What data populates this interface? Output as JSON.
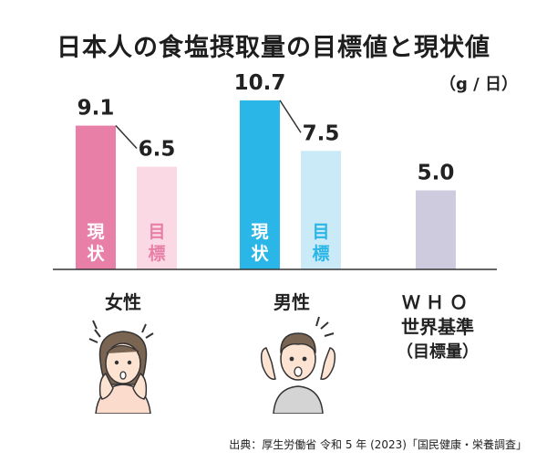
{
  "chart_data": {
    "type": "bar",
    "title": "日本人の食塩摂取量の目標値と現状値",
    "unit": "（g / 日）",
    "ylim": [
      0,
      12
    ],
    "bars": [
      {
        "group": "女性",
        "kind": "現状",
        "value": 9.1,
        "label": "9.1",
        "inner_text": [
          "現",
          "状"
        ],
        "color": "#e77fa7",
        "text_color": "#ffffff"
      },
      {
        "group": "女性",
        "kind": "目標",
        "value": 6.5,
        "label": "6.5",
        "inner_text": [
          "目",
          "標"
        ],
        "color": "#fbd9e4",
        "text_color": "#e77fa7"
      },
      {
        "group": "男性",
        "kind": "現状",
        "value": 10.7,
        "label": "10.7",
        "inner_text": [
          "現",
          "状"
        ],
        "color": "#2ab6e6",
        "text_color": "#ffffff"
      },
      {
        "group": "男性",
        "kind": "目標",
        "value": 7.5,
        "label": "7.5",
        "inner_text": [
          "目",
          "標"
        ],
        "color": "#cbeaf7",
        "text_color": "#2ab6e6"
      },
      {
        "group": "WHO",
        "kind": "基準",
        "value": 5.0,
        "label": "5.0",
        "inner_text": [],
        "color": "#cdcbdd",
        "text_color": "#ffffff"
      }
    ],
    "categories": [
      "女性",
      "男性",
      "ＷＨＯ 世界基準（目標量）"
    ]
  },
  "labels": {
    "female": "女性",
    "male": "男性",
    "who_line1": "ＷＨＯ",
    "who_line2": "世界基準",
    "who_line3": "（目標量）"
  },
  "source": "出典：厚生労働省 令和 5 年 (2023)「国民健康・栄養調査」",
  "colors": {
    "female_current": "#e77fa7",
    "female_target": "#fbd9e4",
    "male_current": "#2ab6e6",
    "male_target": "#cbeaf7",
    "who": "#cdcbdd",
    "skin": "#fde3d2",
    "hair": "#7a6452",
    "shirt_female": "#fbdccc",
    "shirt_male": "#d4d4d4"
  }
}
